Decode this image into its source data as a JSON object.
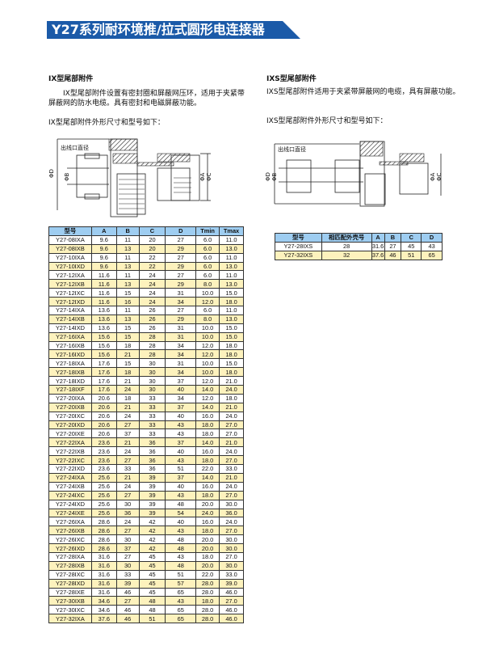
{
  "header": {
    "title": "Y27系列耐环境推/拉式圆形电连接器",
    "color": "#1b5aa8"
  },
  "left": {
    "heading": "IX型尾部附件",
    "para": "　　IX型尾部附件设置有密封圈和屏蔽网压环，适用于夹紧带屏蔽网的防水电缆。具有密封和电磁屏蔽功能。",
    "caption": "IX型尾部附件外形尺寸和型号如下：",
    "drawing": {
      "label": "出线口直径",
      "dims": [
        "ΦD",
        "ΦB",
        "ΦA",
        "ΦC"
      ]
    },
    "table": {
      "headers": [
        "型号",
        "A",
        "B",
        "C",
        "D",
        "Tmin",
        "Tmax"
      ],
      "rows": [
        [
          "Y27-08IXA",
          "9.6",
          "11",
          "20",
          "27",
          "6.0",
          "11.0"
        ],
        [
          "Y27-08IXB",
          "9.6",
          "13",
          "20",
          "29",
          "6.0",
          "13.0"
        ],
        [
          "Y27-10IXA",
          "9.6",
          "11",
          "22",
          "27",
          "6.0",
          "11.0"
        ],
        [
          "Y27-10IXD",
          "9.6",
          "13",
          "22",
          "29",
          "6.0",
          "13.0"
        ],
        [
          "Y27-12IXA",
          "11.6",
          "11",
          "24",
          "27",
          "6.0",
          "11.0"
        ],
        [
          "Y27-12IXB",
          "11.6",
          "13",
          "24",
          "29",
          "8.0",
          "13.0"
        ],
        [
          "Y27-12IXC",
          "11.6",
          "15",
          "24",
          "31",
          "10.0",
          "15.0"
        ],
        [
          "Y27-12IXD",
          "11.6",
          "16",
          "24",
          "34",
          "12.0",
          "18.0"
        ],
        [
          "Y27-14IXA",
          "13.6",
          "11",
          "26",
          "27",
          "6.0",
          "11.0"
        ],
        [
          "Y27-14IXB",
          "13.6",
          "13",
          "26",
          "29",
          "8.0",
          "13.0"
        ],
        [
          "Y27-14IXD",
          "13.6",
          "15",
          "26",
          "31",
          "10.0",
          "15.0"
        ],
        [
          "Y27-16IXA",
          "15.6",
          "15",
          "28",
          "31",
          "10.0",
          "15.0"
        ],
        [
          "Y27-16IXB",
          "15.6",
          "18",
          "28",
          "34",
          "12.0",
          "18.0"
        ],
        [
          "Y27-16IXD",
          "15.6",
          "21",
          "28",
          "34",
          "12.0",
          "18.0"
        ],
        [
          "Y27-18IXA",
          "17.6",
          "15",
          "30",
          "31",
          "10.0",
          "15.0"
        ],
        [
          "Y27-18IXB",
          "17.6",
          "18",
          "30",
          "34",
          "10.0",
          "18.0"
        ],
        [
          "Y27-18IXD",
          "17.6",
          "21",
          "30",
          "37",
          "12.0",
          "21.0"
        ],
        [
          "Y27-18IXF",
          "17.6",
          "24",
          "30",
          "40",
          "14.0",
          "24.0"
        ],
        [
          "Y27-20IXA",
          "20.6",
          "18",
          "33",
          "34",
          "12.0",
          "18.0"
        ],
        [
          "Y27-20IXB",
          "20.6",
          "21",
          "33",
          "37",
          "14.0",
          "21.0"
        ],
        [
          "Y27-20IXC",
          "20.6",
          "24",
          "33",
          "40",
          "16.0",
          "24.0"
        ],
        [
          "Y27-20IXD",
          "20.6",
          "27",
          "33",
          "43",
          "18.0",
          "27.0"
        ],
        [
          "Y27-20IXE",
          "20.6",
          "37",
          "33",
          "43",
          "18.0",
          "27.0"
        ],
        [
          "Y27-22IXA",
          "23.6",
          "21",
          "36",
          "37",
          "14.0",
          "21.0"
        ],
        [
          "Y27-22IXB",
          "23.6",
          "24",
          "36",
          "40",
          "16.0",
          "24.0"
        ],
        [
          "Y27-22IXC",
          "23.6",
          "27",
          "36",
          "43",
          "18.0",
          "27.0"
        ],
        [
          "Y27-22IXD",
          "23.6",
          "33",
          "36",
          "51",
          "22.0",
          "33.0"
        ],
        [
          "Y27-24IXA",
          "25.6",
          "21",
          "39",
          "37",
          "14.0",
          "21.0"
        ],
        [
          "Y27-24IXB",
          "25.6",
          "24",
          "39",
          "40",
          "16.0",
          "24.0"
        ],
        [
          "Y27-24IXC",
          "25.6",
          "27",
          "39",
          "43",
          "18.0",
          "27.0"
        ],
        [
          "Y27-24IXD",
          "25.6",
          "30",
          "39",
          "48",
          "20.0",
          "30.0"
        ],
        [
          "Y27-24IXE",
          "25.6",
          "36",
          "39",
          "54",
          "24.0",
          "36.0"
        ],
        [
          "Y27-26IXA",
          "28.6",
          "24",
          "42",
          "40",
          "16.0",
          "24.0"
        ],
        [
          "Y27-26IXB",
          "28.6",
          "27",
          "42",
          "43",
          "18.0",
          "27.0"
        ],
        [
          "Y27-26IXC",
          "28.6",
          "30",
          "42",
          "48",
          "20.0",
          "30.0"
        ],
        [
          "Y27-26IXD",
          "28.6",
          "37",
          "42",
          "48",
          "20.0",
          "30.0"
        ],
        [
          "Y27-28IXA",
          "31.6",
          "27",
          "45",
          "43",
          "18.0",
          "27.0"
        ],
        [
          "Y27-28IXB",
          "31.6",
          "30",
          "45",
          "48",
          "20.0",
          "30.0"
        ],
        [
          "Y27-28IXC",
          "31.6",
          "33",
          "45",
          "51",
          "22.0",
          "33.0"
        ],
        [
          "Y27-28IXD",
          "31.6",
          "39",
          "45",
          "57",
          "28.0",
          "39.0"
        ],
        [
          "Y27-28IXE",
          "31.6",
          "46",
          "45",
          "65",
          "28.0",
          "46.0"
        ],
        [
          "Y27-30IXB",
          "34.6",
          "27",
          "48",
          "43",
          "18.0",
          "27.0"
        ],
        [
          "Y27-30IXC",
          "34.6",
          "46",
          "48",
          "65",
          "28.0",
          "46.0"
        ],
        [
          "Y27-32IXA",
          "37.6",
          "46",
          "51",
          "65",
          "28.0",
          "46.0"
        ]
      ]
    }
  },
  "right": {
    "heading": "IXS型尾部附件",
    "para": "IXS型尾部附件适用于夹紧带屏蔽网的电缆，具有屏蔽功能。",
    "caption": "IXS型尾部附件外形尺寸和型号如下：",
    "drawing": {
      "label": "出线口直径",
      "dims": [
        "ΦD",
        "ΦB",
        "ΦA",
        "ΦC"
      ]
    },
    "table": {
      "headers": [
        "型号",
        "相匹配外壳号",
        "A",
        "B",
        "C",
        "D"
      ],
      "rows": [
        [
          "Y27-28IXS",
          "28",
          "31.6",
          "27",
          "45",
          "43"
        ],
        [
          "Y27-32IXS",
          "32",
          "37.6",
          "46",
          "51",
          "65"
        ]
      ]
    }
  },
  "colors": {
    "table_header": "#9ecdf1",
    "row_alt": "#fdf2bd"
  }
}
